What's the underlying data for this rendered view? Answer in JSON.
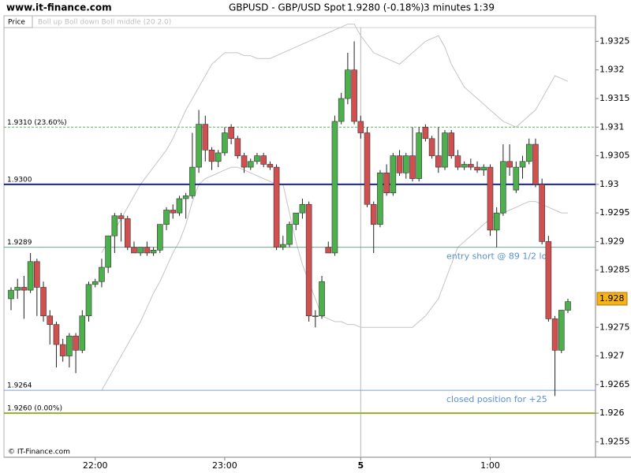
{
  "chart_data": {
    "type": "candlestick",
    "site": "www.it-finance.com",
    "title": "GBPUSD - GBP/USD Spot",
    "quote": "1.9280 (-0.18%)",
    "interval": "3 minutes",
    "clock": "1:39",
    "legend_label": "Price",
    "indicator_legend": "Boll up Boll down Boll middle (20 2.0)",
    "footer": "© IT-Finance.com",
    "categories": [
      null,
      null,
      null,
      null,
      null,
      null,
      null,
      null,
      null,
      null,
      null,
      null,
      null,
      "22:00",
      null,
      null,
      null,
      null,
      null,
      null,
      null,
      null,
      null,
      null,
      null,
      null,
      null,
      null,
      null,
      null,
      null,
      null,
      null,
      "23:00",
      null,
      null,
      null,
      null,
      null,
      null,
      null,
      null,
      null,
      null,
      null,
      null,
      null,
      null,
      null,
      null,
      null,
      null,
      null,
      null,
      "5",
      null,
      null,
      null,
      null,
      null,
      null,
      null,
      null,
      null,
      null,
      null,
      null,
      null,
      null,
      null,
      null,
      null,
      null,
      null,
      "1:00",
      null,
      null,
      null,
      null,
      null,
      null,
      null,
      null,
      null,
      null,
      null,
      null
    ],
    "open": [
      1.928,
      1.92815,
      1.9282,
      1.92815,
      1.92865,
      1.9282,
      1.9277,
      1.92755,
      1.9272,
      1.927,
      1.92735,
      1.9271,
      1.9277,
      1.92825,
      1.9283,
      1.92855,
      1.9291,
      1.92945,
      1.9294,
      1.9289,
      1.9288,
      1.9289,
      1.9288,
      1.92885,
      1.9293,
      1.92955,
      1.9295,
      1.92975,
      1.9298,
      1.9303,
      1.93105,
      1.9306,
      1.9304,
      1.93055,
      1.931,
      1.9308,
      1.9305,
      1.9303,
      1.9304,
      1.9305,
      1.93035,
      1.9303,
      1.9289,
      1.92895,
      1.9293,
      1.9295,
      1.92965,
      1.9277,
      1.9277,
      1.9289,
      1.9288,
      1.9311,
      1.9315,
      1.932,
      1.9311,
      1.9309,
      1.92965,
      1.9293,
      1.9302,
      1.92985,
      1.9305,
      1.9302,
      1.9305,
      1.9301,
      1.931,
      1.9308,
      1.9305,
      1.9303,
      1.9309,
      1.9305,
      1.9303,
      1.93035,
      1.9303,
      1.93025,
      1.9303,
      1.9292,
      1.9295,
      1.9304,
      1.9299,
      1.9303,
      1.9304,
      1.9307,
      1.93,
      1.929,
      1.92765,
      1.9271,
      1.9278
    ],
    "high": [
      1.9282,
      1.92835,
      1.9284,
      1.9288,
      1.9287,
      1.9283,
      1.9278,
      1.9276,
      1.9273,
      1.9274,
      1.9274,
      1.9278,
      1.9283,
      1.92835,
      1.9287,
      1.9291,
      1.9295,
      1.9295,
      1.92945,
      1.929,
      1.9289,
      1.929,
      1.9289,
      1.9293,
      1.9296,
      1.92965,
      1.9298,
      1.92985,
      1.9309,
      1.9313,
      1.9312,
      1.93065,
      1.9306,
      1.931,
      1.93105,
      1.93085,
      1.93055,
      1.93045,
      1.93055,
      1.93055,
      1.9304,
      1.93035,
      1.9291,
      1.92935,
      1.9295,
      1.92975,
      1.9297,
      1.9278,
      1.9284,
      1.929,
      1.9312,
      1.9316,
      1.9323,
      1.9325,
      1.9312,
      1.931,
      1.9297,
      1.93025,
      1.93035,
      1.93055,
      1.9306,
      1.93055,
      1.931,
      1.931,
      1.93105,
      1.93085,
      1.931,
      1.93095,
      1.93095,
      1.9306,
      1.9304,
      1.93045,
      1.9304,
      1.93035,
      1.93035,
      1.9296,
      1.9307,
      1.9307,
      1.9304,
      1.9305,
      1.9308,
      1.9308,
      1.9301,
      1.9291,
      1.9277,
      1.9278,
      1.928
    ],
    "low": [
      1.9278,
      1.928,
      1.92765,
      1.9281,
      1.9277,
      1.9276,
      1.9272,
      1.9268,
      1.9269,
      1.9268,
      1.9267,
      1.92705,
      1.9276,
      1.9282,
      1.9282,
      1.92845,
      1.9288,
      1.929,
      1.92885,
      1.9288,
      1.92875,
      1.92875,
      1.92875,
      1.9288,
      1.9292,
      1.9294,
      1.92945,
      1.9294,
      1.92975,
      1.9302,
      1.9304,
      1.93025,
      1.9303,
      1.9305,
      1.9307,
      1.93045,
      1.9302,
      1.93025,
      1.93035,
      1.9303,
      1.93025,
      1.92885,
      1.92885,
      1.9289,
      1.9292,
      1.9294,
      1.9276,
      1.9275,
      1.92765,
      1.9288,
      1.92875,
      1.93105,
      1.9314,
      1.93105,
      1.9308,
      1.9296,
      1.9288,
      1.92925,
      1.9298,
      1.9298,
      1.93015,
      1.9301,
      1.93005,
      1.93005,
      1.93075,
      1.93045,
      1.9302,
      1.93025,
      1.93045,
      1.93025,
      1.93025,
      1.93025,
      1.9302,
      1.93015,
      1.9291,
      1.9289,
      1.92945,
      1.93015,
      1.92985,
      1.9301,
      1.93035,
      1.92995,
      1.92895,
      1.9276,
      1.9263,
      1.92705,
      1.92775
    ],
    "close": [
      1.92815,
      1.9282,
      1.92815,
      1.92865,
      1.9282,
      1.9277,
      1.92755,
      1.9272,
      1.927,
      1.92735,
      1.9271,
      1.9277,
      1.92825,
      1.9283,
      1.92855,
      1.9291,
      1.92945,
      1.9294,
      1.9289,
      1.9288,
      1.9289,
      1.9288,
      1.92885,
      1.9293,
      1.92955,
      1.9295,
      1.92975,
      1.9298,
      1.9303,
      1.93105,
      1.9306,
      1.9304,
      1.93055,
      1.9309,
      1.9308,
      1.9305,
      1.9303,
      1.9304,
      1.9305,
      1.93035,
      1.9303,
      1.9289,
      1.92895,
      1.9293,
      1.9295,
      1.92965,
      1.9277,
      1.9277,
      1.9283,
      1.9288,
      1.9311,
      1.9315,
      1.932,
      1.9311,
      1.9309,
      1.92965,
      1.9293,
      1.9302,
      1.92985,
      1.9305,
      1.9302,
      1.9305,
      1.9301,
      1.9309,
      1.9308,
      1.9305,
      1.9303,
      1.9309,
      1.9305,
      1.9303,
      1.93035,
      1.9303,
      1.93025,
      1.9303,
      1.9292,
      1.9295,
      1.9304,
      1.9303,
      1.9303,
      1.9304,
      1.9307,
      1.93,
      1.929,
      1.92765,
      1.9271,
      1.9278,
      1.92795
    ],
    "up_color": "#4cb04c",
    "down_color": "#d05050",
    "bands": [
      {
        "color": "#c4c4c4",
        "values": [
          null,
          null,
          null,
          null,
          null,
          null,
          null,
          null,
          null,
          null,
          null,
          null,
          null,
          null,
          1.9288,
          1.929,
          1.9292,
          1.9294,
          1.9296,
          1.9298,
          1.93,
          1.93015,
          1.9303,
          1.93045,
          1.9306,
          1.9308,
          1.93105,
          1.9313,
          1.9315,
          1.9317,
          1.9319,
          1.9321,
          1.9322,
          1.9323,
          1.9323,
          1.9323,
          1.93225,
          1.93225,
          1.9322,
          1.9322,
          1.9322,
          1.93225,
          1.9323,
          1.93235,
          1.9324,
          1.93245,
          1.9325,
          1.93255,
          1.9326,
          1.93265,
          1.9327,
          1.93275,
          1.9328,
          1.9328,
          1.9326,
          1.93245,
          1.9323,
          1.93225,
          1.9322,
          1.93215,
          1.9321,
          1.9322,
          1.9323,
          1.9324,
          1.9325,
          1.93255,
          1.9326,
          1.9324,
          1.9321,
          1.9319,
          1.9317,
          1.9316,
          1.9315,
          1.9314,
          1.9313,
          1.9312,
          1.9311,
          1.93105,
          1.931,
          1.9311,
          1.9312,
          1.9313,
          1.9315,
          1.9317,
          1.9319,
          1.93185,
          1.9318
        ]
      },
      {
        "color": "#c4c4c4",
        "values": [
          null,
          null,
          null,
          null,
          null,
          null,
          null,
          null,
          null,
          null,
          null,
          null,
          null,
          null,
          1.9264,
          1.9266,
          1.9268,
          1.927,
          1.9272,
          1.9274,
          1.9276,
          1.92785,
          1.9281,
          1.9283,
          1.92855,
          1.9288,
          1.929,
          1.9293,
          1.9297,
          1.93,
          1.9301,
          1.93015,
          1.9302,
          1.93025,
          1.9303,
          1.9303,
          1.93025,
          1.9302,
          1.93015,
          1.9301,
          1.93005,
          1.93,
          1.93,
          1.9295,
          1.929,
          1.9286,
          1.9283,
          1.928,
          1.9277,
          1.92765,
          1.9276,
          1.9276,
          1.92755,
          1.92755,
          1.9275,
          1.9275,
          1.9275,
          1.9275,
          1.9275,
          1.9275,
          1.9275,
          1.9275,
          1.9275,
          1.9276,
          1.9277,
          1.92785,
          1.928,
          1.9283,
          1.9286,
          1.9289,
          1.929,
          1.9291,
          1.9292,
          1.9293,
          1.9294,
          1.92945,
          1.9295,
          1.92955,
          1.9296,
          1.92965,
          1.9297,
          1.9297,
          1.92965,
          1.9296,
          1.92955,
          1.9295,
          1.9295
        ]
      }
    ],
    "levels": [
      {
        "value": 1.931,
        "label": "1.9310 (23.60%)",
        "color": "#5cb85c",
        "width": 1,
        "dash": true
      },
      {
        "value": 1.93,
        "label": "1.9300",
        "color": "#1a22a0",
        "width": 2,
        "dash": false
      },
      {
        "value": 1.9289,
        "label": "1.9289",
        "color": "#6aa88a",
        "width": 1,
        "dash": false,
        "note": "entry short @ 89 1/2 lot"
      },
      {
        "value": 1.9264,
        "label": "1.9264",
        "color": "#7d9fd8",
        "width": 1,
        "dash": false,
        "note": "closed position for +25"
      },
      {
        "value": 1.926,
        "label": "1.9260 (0.00%)",
        "color": "#9aaa2a",
        "width": 2,
        "dash": false
      }
    ],
    "last_price": 1.928,
    "last_price_color": "#f5b21a",
    "ylim": [
      1.92523,
      1.93274
    ],
    "yticks": [
      1.9325,
      1.932,
      1.9315,
      1.931,
      1.9305,
      1.93,
      1.9295,
      1.929,
      1.9285,
      1.9275,
      1.927,
      1.9265,
      1.926,
      1.9255
    ],
    "grid": false
  }
}
